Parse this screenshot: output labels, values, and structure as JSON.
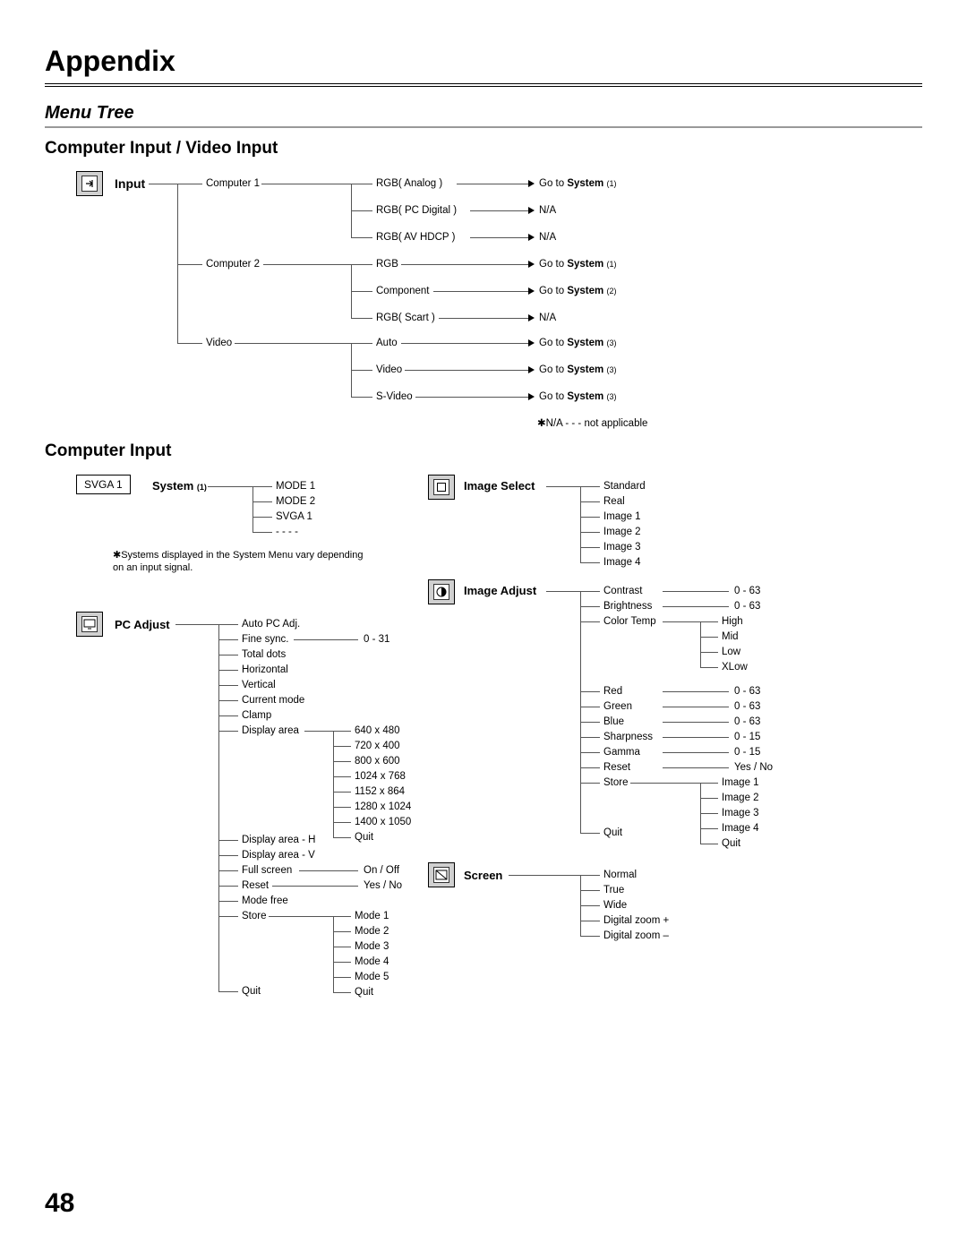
{
  "header": "Appendix",
  "section": "Menu Tree",
  "sub1": "Computer Input / Video Input",
  "sub2": "Computer Input",
  "pageNum": "48",
  "notApplicable": "✱N/A - - - not applicable",
  "systemNote": "✱Systems displayed in the System Menu vary depending on an input signal.",
  "input": {
    "label": "Input",
    "sources": [
      "Computer 1",
      "Computer 2",
      "Video"
    ],
    "c1": [
      "RGB( Analog )",
      "RGB( PC Digital )",
      "RGB( AV HDCP )"
    ],
    "c1go": [
      "Go to System (1)",
      "N/A",
      "N/A"
    ],
    "c2": [
      "RGB",
      "Component",
      "RGB( Scart )"
    ],
    "c2go": [
      "Go to System (1)",
      "Go to System (2)",
      "N/A"
    ],
    "v": [
      "Auto",
      "Video",
      "S-Video"
    ],
    "vgo": [
      "Go to System (3)",
      "Go to System (3)",
      "Go to System (3)"
    ]
  },
  "system": {
    "label": "System",
    "sub": "(1)",
    "items": [
      "MODE 1",
      "MODE 2",
      "SVGA 1",
      "- - - -"
    ]
  },
  "pcAdjust": {
    "label": "PC Adjust",
    "items": [
      "Auto PC Adj.",
      "Fine sync.",
      "Total dots",
      "Horizontal",
      "Vertical",
      "Current mode",
      "Clamp",
      "Display area",
      "Display area - H",
      "Display area - V",
      "Full screen",
      "Reset",
      "Mode free",
      "Store",
      "Quit"
    ],
    "finesync": "0 - 31",
    "displayArea": [
      "640 x 480",
      "720 x 400",
      "800 x 600",
      "1024 x 768",
      "1152 x 864",
      "1280 x 1024",
      "1400 x 1050",
      "Quit"
    ],
    "fullscreen": "On / Off",
    "reset": "Yes / No",
    "store": [
      "Mode 1",
      "Mode 2",
      "Mode 3",
      "Mode 4",
      "Mode 5",
      "Quit"
    ]
  },
  "imageSelect": {
    "label": "Image Select",
    "items": [
      "Standard",
      "Real",
      "Image 1",
      "Image 2",
      "Image 3",
      "Image 4"
    ]
  },
  "imageAdjust": {
    "label": "Image Adjust",
    "items": [
      "Contrast",
      "Brightness",
      "Color Temp",
      "Red",
      "Green",
      "Blue",
      "Sharpness",
      "Gamma",
      "Reset",
      "Store",
      "Quit"
    ],
    "colorTemp": [
      "High",
      "Mid",
      "Low",
      "XLow"
    ],
    "store": [
      "Image 1",
      "Image 2",
      "Image 3",
      "Image 4",
      "Quit"
    ],
    "vals": {
      "contrast": "0 - 63",
      "brightness": "0 - 63",
      "red": "0 - 63",
      "green": "0 - 63",
      "blue": "0 - 63",
      "sharpness": "0 - 15",
      "gamma": "0 - 15",
      "reset": "Yes / No"
    }
  },
  "screen": {
    "label": "Screen",
    "items": [
      "Normal",
      "True",
      "Wide",
      "Digital zoom +",
      "Digital zoom –"
    ]
  },
  "iconLabel": "SVGA 1"
}
